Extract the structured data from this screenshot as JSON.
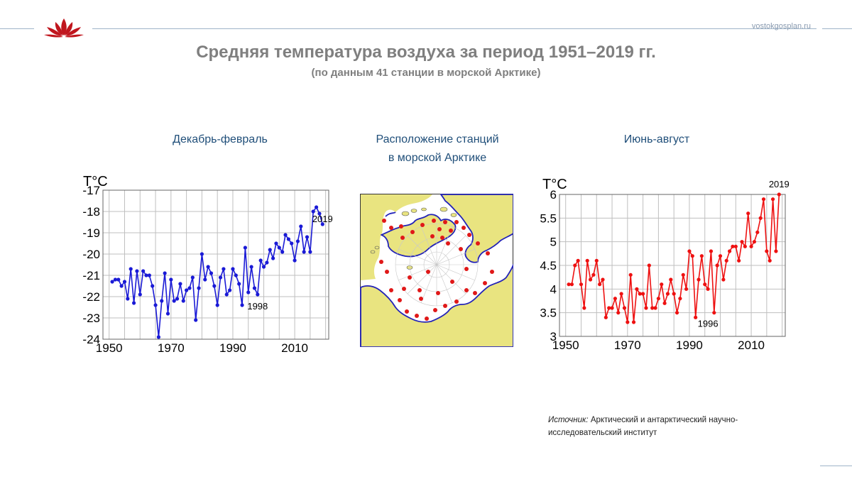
{
  "header": {
    "site": "vostokgosplan.ru",
    "title": "Средняя температура воздуха за период 1951–2019 гг.",
    "subtitle": "(по данным 41 станции в морской Арктике)"
  },
  "panels": {
    "left_title": "Декабрь-февраль",
    "map_title_line1": "Расположение станций",
    "map_title_line2": "в морской Арктике",
    "right_title": "Июнь-август"
  },
  "source": {
    "label": "Источник:",
    "text": "Арктический и антарктический научно-исследовательский институт"
  },
  "colors": {
    "winter": "#1a1ad6",
    "summer": "#ee1111",
    "map_land": "#e9e480",
    "map_sea": "#ffffff",
    "map_border": "#2323b8",
    "station": "#e01818"
  },
  "chart_data": [
    {
      "type": "line",
      "name": "winter",
      "ylabel": "T°C",
      "xlim": [
        1948,
        2021
      ],
      "ylim": [
        -24,
        -17
      ],
      "xticks": [
        1950,
        1970,
        1990,
        2010
      ],
      "yticks": [
        -24,
        -23,
        -22,
        -21,
        -20,
        -19,
        -18,
        -17
      ],
      "grid": true,
      "annotations": [
        {
          "text": "1998",
          "x": 1998,
          "y": -22.6
        },
        {
          "text": "2019",
          "x": 2019,
          "y": -18.5
        }
      ],
      "x": [
        1951,
        1952,
        1953,
        1954,
        1955,
        1956,
        1957,
        1958,
        1959,
        1960,
        1961,
        1962,
        1963,
        1964,
        1965,
        1966,
        1967,
        1968,
        1969,
        1970,
        1971,
        1972,
        1973,
        1974,
        1975,
        1976,
        1977,
        1978,
        1979,
        1980,
        1981,
        1982,
        1983,
        1984,
        1985,
        1986,
        1987,
        1988,
        1989,
        1990,
        1991,
        1992,
        1993,
        1994,
        1995,
        1996,
        1997,
        1998,
        1999,
        2000,
        2001,
        2002,
        2003,
        2004,
        2005,
        2006,
        2007,
        2008,
        2009,
        2010,
        2011,
        2012,
        2013,
        2014,
        2015,
        2016,
        2017,
        2018,
        2019
      ],
      "y": [
        -21.3,
        -21.2,
        -21.2,
        -21.5,
        -21.3,
        -22.1,
        -20.7,
        -22.3,
        -20.8,
        -21.9,
        -20.8,
        -21.0,
        -21.0,
        -21.5,
        -22.4,
        -23.9,
        -22.2,
        -20.9,
        -22.8,
        -21.2,
        -22.2,
        -22.1,
        -21.4,
        -22.2,
        -21.7,
        -21.6,
        -21.1,
        -23.1,
        -21.6,
        -20.0,
        -21.2,
        -20.6,
        -20.9,
        -21.5,
        -22.4,
        -21.1,
        -20.7,
        -21.9,
        -21.7,
        -20.7,
        -21.0,
        -21.4,
        -22.4,
        -19.7,
        -21.8,
        -20.6,
        -21.6,
        -21.9,
        -20.3,
        -20.6,
        -20.4,
        -19.8,
        -20.2,
        -19.5,
        -19.7,
        -19.9,
        -19.1,
        -19.3,
        -19.5,
        -20.3,
        -19.4,
        -18.7,
        -19.9,
        -19.2,
        -19.9,
        -18.0,
        -17.8,
        -18.1,
        -18.6
      ]
    },
    {
      "type": "line",
      "name": "summer",
      "ylabel": "T°C",
      "xlim": [
        1948,
        2021
      ],
      "ylim": [
        3,
        6
      ],
      "xticks": [
        1950,
        1970,
        1990,
        2010
      ],
      "yticks": [
        3,
        3.5,
        4,
        4.5,
        5,
        5.5,
        6
      ],
      "grid": true,
      "annotations": [
        {
          "text": "1996",
          "x": 1996,
          "y": 3.2
        },
        {
          "text": "2019",
          "x": 2019,
          "y": 6.15
        }
      ],
      "x": [
        1951,
        1952,
        1953,
        1954,
        1955,
        1956,
        1957,
        1958,
        1959,
        1960,
        1961,
        1962,
        1963,
        1964,
        1965,
        1966,
        1967,
        1968,
        1969,
        1970,
        1971,
        1972,
        1973,
        1974,
        1975,
        1976,
        1977,
        1978,
        1979,
        1980,
        1981,
        1982,
        1983,
        1984,
        1985,
        1986,
        1987,
        1988,
        1989,
        1990,
        1991,
        1992,
        1993,
        1994,
        1995,
        1996,
        1997,
        1998,
        1999,
        2000,
        2001,
        2002,
        2003,
        2004,
        2005,
        2006,
        2007,
        2008,
        2009,
        2010,
        2011,
        2012,
        2013,
        2014,
        2015,
        2016,
        2017,
        2018,
        2019
      ],
      "y": [
        4.1,
        4.1,
        4.5,
        4.6,
        4.1,
        3.6,
        4.6,
        4.2,
        4.3,
        4.6,
        4.1,
        4.2,
        3.4,
        3.6,
        3.6,
        3.8,
        3.5,
        3.9,
        3.6,
        3.3,
        4.3,
        3.3,
        4.0,
        3.9,
        3.9,
        3.6,
        4.5,
        3.6,
        3.6,
        3.8,
        4.1,
        3.7,
        3.9,
        4.2,
        3.9,
        3.5,
        3.8,
        4.3,
        4.0,
        4.8,
        4.7,
        3.4,
        4.2,
        4.7,
        4.1,
        4.0,
        4.8,
        3.5,
        4.5,
        4.7,
        4.2,
        4.6,
        4.8,
        4.9,
        4.9,
        4.6,
        5.0,
        4.9,
        5.6,
        4.9,
        5.0,
        5.2,
        5.5,
        5.9,
        4.8,
        4.6,
        5.9,
        4.8,
        6.0
      ]
    }
  ]
}
